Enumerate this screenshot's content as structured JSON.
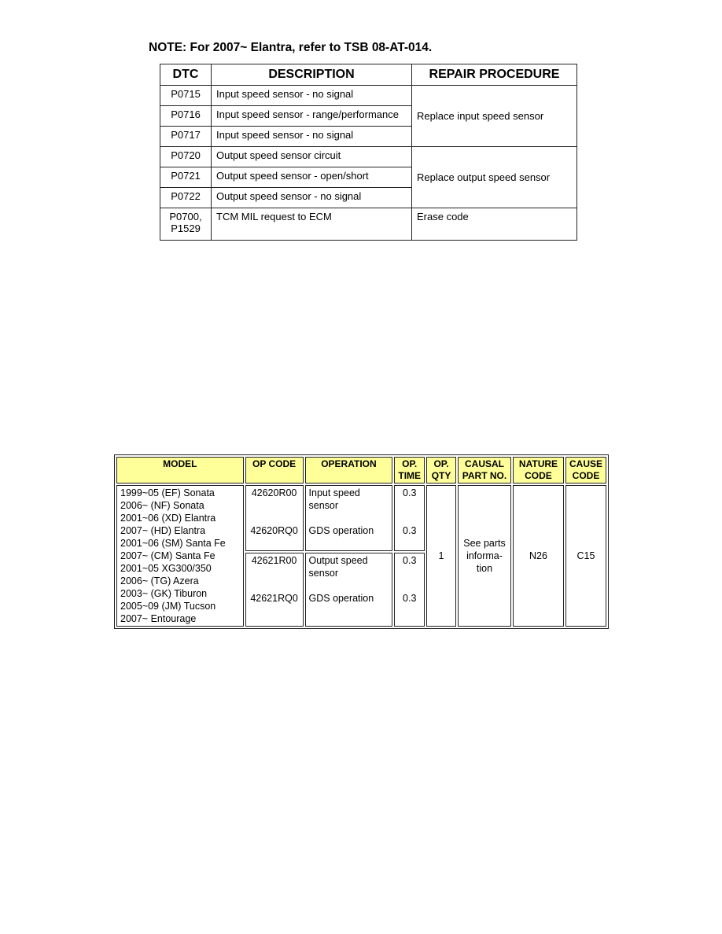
{
  "note": "NOTE:  For 2007~ Elantra, refer to TSB 08-AT-014.",
  "dtc_table": {
    "headers": [
      "DTC",
      "DESCRIPTION",
      "REPAIR PROCEDURE"
    ],
    "rows": [
      {
        "dtc": "P0715",
        "description": "Input speed sensor - no signal"
      },
      {
        "dtc": "P0716",
        "description": "Input speed sensor - range/performance"
      },
      {
        "dtc": "P0717",
        "description": "Input speed sensor - no signal"
      },
      {
        "dtc": "P0720",
        "description": "Output speed sensor circuit"
      },
      {
        "dtc": "P0721",
        "description": "Output speed sensor - open/short"
      },
      {
        "dtc": "P0722",
        "description": "Output speed sensor - no signal"
      },
      {
        "dtc": "P0700,",
        "dtc2": "P1529",
        "description": "TCM MIL request to ECM"
      }
    ],
    "procedures": [
      "Replace input speed sensor",
      "Replace output speed sensor",
      "Erase code"
    ]
  },
  "warranty_table": {
    "headers": [
      "MODEL",
      "OP CODE",
      "OPERATION",
      "OP.",
      "TIME",
      "OP.",
      "QTY",
      "CAUSAL",
      "PART NO.",
      "NATURE",
      "CODE",
      "CAUSE",
      "CODE"
    ],
    "models": [
      "1999~05 (EF) Sonata",
      "2006~ (NF) Sonata",
      "2001~06 (XD) Elantra",
      "2007~ (HD) Elantra",
      "2001~06 (SM) Santa Fe",
      "2007~ (CM) Santa Fe",
      "2001~05 XG300/350",
      "2006~ (TG) Azera",
      "2003~ (GK) Tiburon",
      "2005~09 (JM) Tucson",
      "2007~ Entourage"
    ],
    "ops": [
      {
        "code": "42620R00",
        "operation": "Input speed",
        "operation2": "sensor",
        "time": "0.3"
      },
      {
        "code": "42620RQ0",
        "operation": "GDS operation",
        "time": "0.3"
      },
      {
        "code": "42621R00",
        "operation": "Output speed",
        "operation2": "sensor",
        "time": "0.3"
      },
      {
        "code": "42621RQ0",
        "operation": "GDS operation",
        "time": "0.3"
      }
    ],
    "qty": "1",
    "causal": [
      "See parts",
      "informa-",
      "tion"
    ],
    "nature_code": "N26",
    "cause_code": "C15",
    "header_color": "#ffff99"
  }
}
